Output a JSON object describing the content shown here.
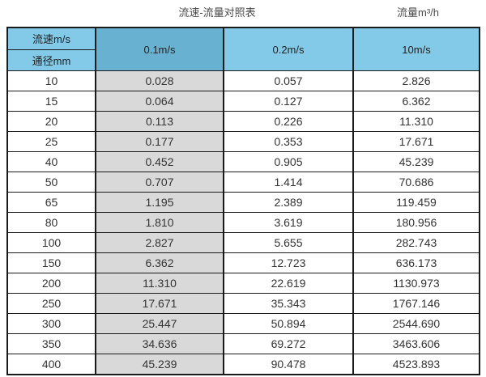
{
  "page": {
    "title": "流速-流量对照表",
    "unit_label": "流量m³/h"
  },
  "table": {
    "corner_top": "流速m/s",
    "corner_bottom": "通径mm",
    "velocity_columns": [
      "0.1m/s",
      "0.2m/s",
      "10m/s"
    ],
    "rows": [
      {
        "diameter": "10",
        "values": [
          "0.028",
          "0.057",
          "2.826"
        ]
      },
      {
        "diameter": "15",
        "values": [
          "0.064",
          "0.127",
          "6.362"
        ]
      },
      {
        "diameter": "20",
        "values": [
          "0.113",
          "0.226",
          "11.310"
        ]
      },
      {
        "diameter": "25",
        "values": [
          "0.177",
          "0.353",
          "17.671"
        ]
      },
      {
        "diameter": "40",
        "values": [
          "0.452",
          "0.905",
          "45.239"
        ]
      },
      {
        "diameter": "50",
        "values": [
          "0.707",
          "1.414",
          "70.686"
        ]
      },
      {
        "diameter": "65",
        "values": [
          "1.195",
          "2.389",
          "119.459"
        ]
      },
      {
        "diameter": "80",
        "values": [
          "1.810",
          "3.619",
          "180.956"
        ]
      },
      {
        "diameter": "100",
        "values": [
          "2.827",
          "5.655",
          "282.743"
        ]
      },
      {
        "diameter": "150",
        "values": [
          "6.362",
          "12.723",
          "636.173"
        ]
      },
      {
        "diameter": "200",
        "values": [
          "11.310",
          "22.619",
          "1130.973"
        ]
      },
      {
        "diameter": "250",
        "values": [
          "17.671",
          "35.343",
          "1767.146"
        ]
      },
      {
        "diameter": "300",
        "values": [
          "25.447",
          "50.894",
          "2544.690"
        ]
      },
      {
        "diameter": "350",
        "values": [
          "34.636",
          "69.272",
          "3463.606"
        ]
      },
      {
        "diameter": "400",
        "values": [
          "45.239",
          "90.478",
          "4523.893"
        ]
      }
    ]
  },
  "colors": {
    "header_blue": "#82cae8",
    "highlight_blue": "#69b1d0",
    "shaded_gray": "#d9d9d9",
    "border": "#1a1a1a"
  },
  "chart_data": {
    "type": "table",
    "title": "流速-流量对照表",
    "value_unit": "流量m³/h",
    "column_header": "流速m/s",
    "row_header": "通径mm",
    "columns": [
      "0.1m/s",
      "0.2m/s",
      "10m/s"
    ],
    "diameters_mm": [
      10,
      15,
      20,
      25,
      40,
      50,
      65,
      80,
      100,
      150,
      200,
      250,
      300,
      350,
      400
    ],
    "rows": [
      [
        0.028,
        0.057,
        2.826
      ],
      [
        0.064,
        0.127,
        6.362
      ],
      [
        0.113,
        0.226,
        11.31
      ],
      [
        0.177,
        0.353,
        17.671
      ],
      [
        0.452,
        0.905,
        45.239
      ],
      [
        0.707,
        1.414,
        70.686
      ],
      [
        1.195,
        2.389,
        119.459
      ],
      [
        1.81,
        3.619,
        180.956
      ],
      [
        2.827,
        5.655,
        282.743
      ],
      [
        6.362,
        12.723,
        636.173
      ],
      [
        11.31,
        22.619,
        1130.973
      ],
      [
        17.671,
        35.343,
        1767.146
      ],
      [
        25.447,
        50.894,
        2544.69
      ],
      [
        34.636,
        69.272,
        3463.606
      ],
      [
        45.239,
        90.478,
        4523.893
      ]
    ],
    "layout": {
      "highlighted_column": "0.1m/s",
      "grid": true
    }
  }
}
